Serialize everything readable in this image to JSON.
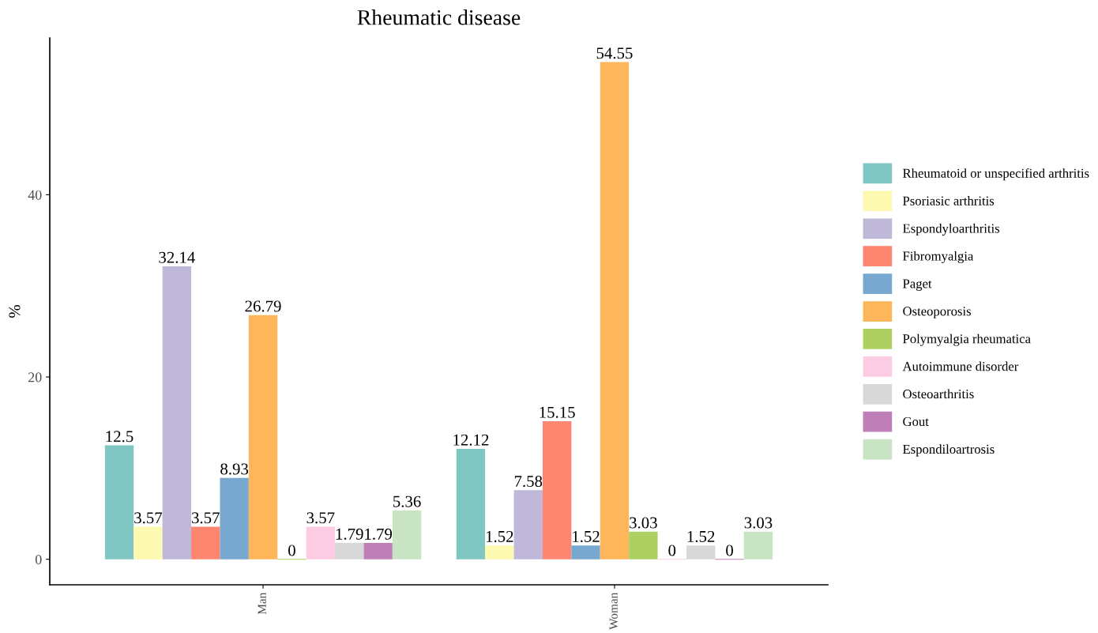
{
  "chart_data": {
    "type": "bar",
    "title": "Rheumatic disease",
    "ylabel": "%",
    "categories": [
      "Man",
      "Woman"
    ],
    "series": [
      {
        "name": "Rheumatoid or unspecified arthritis",
        "color": "#80c6c2",
        "values": [
          12.5,
          12.12
        ]
      },
      {
        "name": "Psoriasic arthritis",
        "color": "#fdf9b0",
        "values": [
          3.57,
          1.52
        ]
      },
      {
        "name": "Espondyloarthritis",
        "color": "#bfb8d8",
        "values": [
          32.14,
          7.58
        ]
      },
      {
        "name": "Fibromyalgia",
        "color": "#fd8670",
        "values": [
          3.57,
          15.15
        ]
      },
      {
        "name": "Paget",
        "color": "#78a7d0",
        "values": [
          8.93,
          1.52
        ]
      },
      {
        "name": "Osteoporosis",
        "color": "#fdb65a",
        "values": [
          26.79,
          54.55
        ]
      },
      {
        "name": "Polymyalgia rheumatica",
        "color": "#aed062",
        "values": [
          0,
          3.03
        ]
      },
      {
        "name": "Autoimmune disorder",
        "color": "#fccde2",
        "values": [
          3.57,
          0
        ]
      },
      {
        "name": "Osteoarthritis",
        "color": "#d8d8d8",
        "values": [
          1.79,
          1.52
        ]
      },
      {
        "name": "Gout",
        "color": "#bf7fb8",
        "values": [
          1.79,
          0
        ]
      },
      {
        "name": "Espondiloartrosis",
        "color": "#c9e4c3",
        "values": [
          5.36,
          3.03
        ]
      }
    ],
    "ylim": [
      -2.8,
      57.2
    ],
    "yticks": [
      0,
      20,
      40
    ],
    "data_labels": true,
    "legend": "right",
    "grid": false
  }
}
